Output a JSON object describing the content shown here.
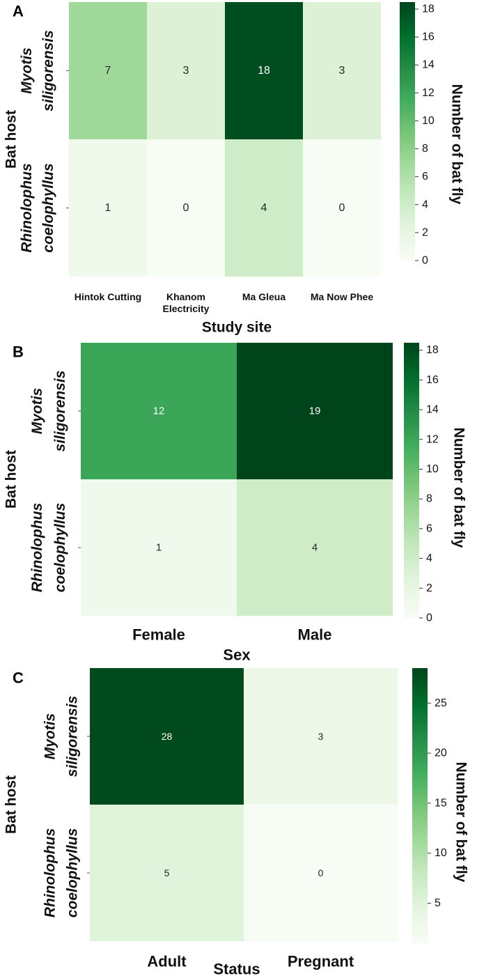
{
  "chart_data": [
    {
      "type": "heatmap",
      "panel_label": "A",
      "row_axis_label": "Bat host",
      "rows": [
        [
          "Myotis",
          "siligorensis"
        ],
        [
          "Rhinolophus",
          "coelophyllus"
        ]
      ],
      "columns": [
        [
          "Hintok Cutting"
        ],
        [
          "Khanom",
          "Electricity"
        ],
        [
          "Ma Gleua"
        ],
        [
          "Ma Now Phee"
        ]
      ],
      "values": [
        [
          7,
          3,
          18,
          3
        ],
        [
          1,
          0,
          4,
          0
        ]
      ],
      "cell_labels": [
        [
          "7",
          "3",
          "18",
          "3"
        ],
        [
          "1",
          "0",
          "4",
          "0"
        ]
      ],
      "xlabel": "Study site",
      "colorbar": {
        "label": "Number of bat fly",
        "range": [
          0,
          18.5
        ],
        "ticks": [
          "0",
          "2",
          "4",
          "6",
          "8",
          "10",
          "12",
          "14",
          "16",
          "18"
        ]
      }
    },
    {
      "type": "heatmap",
      "panel_label": "B",
      "row_axis_label": "Bat host",
      "rows": [
        [
          "Myotis",
          "siligorensis"
        ],
        [
          "Rhinolophus",
          "coelophyllus"
        ]
      ],
      "columns": [
        [
          "Female"
        ],
        [
          "Male"
        ]
      ],
      "values": [
        [
          12,
          19
        ],
        [
          1,
          4
        ]
      ],
      "cell_labels": [
        [
          "12",
          "19"
        ],
        [
          "1",
          "4"
        ]
      ],
      "xlabel": "Sex",
      "colorbar": {
        "label": "Number of bat fly",
        "range": [
          0,
          18.5
        ],
        "ticks": [
          "0",
          "2",
          "4",
          "6",
          "8",
          "10",
          "12",
          "14",
          "16",
          "18"
        ]
      }
    },
    {
      "type": "heatmap",
      "panel_label": "C",
      "row_axis_label": "Bat host",
      "rows": [
        [
          "Myotis",
          "siligorensis"
        ],
        [
          "Rhinolophus",
          "coelophyllus"
        ]
      ],
      "columns": [
        [
          "Adult"
        ],
        [
          "Pregnant"
        ]
      ],
      "values": [
        [
          28,
          3
        ],
        [
          5,
          0
        ]
      ],
      "cell_labels": [
        [
          "28",
          "3"
        ],
        [
          "5",
          "0"
        ]
      ],
      "xlabel": "Status",
      "colorbar": {
        "label": "Number of bat fly",
        "range": [
          1,
          28.5
        ],
        "ticks": [
          "5",
          "10",
          "15",
          "20",
          "25"
        ]
      }
    }
  ],
  "colors": {
    "ramp": [
      "#f7fcf5",
      "#e5f5e0",
      "#c7e9c0",
      "#a1d99b",
      "#74c476",
      "#41ab5d",
      "#238b45",
      "#006d2c",
      "#00441b"
    ],
    "text_dark": "#262626",
    "text_light": "#ffffff",
    "axis_text": "#111111"
  }
}
